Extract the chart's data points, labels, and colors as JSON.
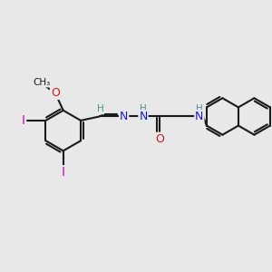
{
  "background_color": "#e8e8e8",
  "bond_color": "#1a1a1a",
  "bond_width": 1.5,
  "atom_colors": {
    "C": "#1a1a1a",
    "H": "#4a9090",
    "N": "#1a1acc",
    "O": "#cc1a1a",
    "I": "#cc00cc"
  },
  "font_size": 9,
  "font_size_small": 7.5
}
